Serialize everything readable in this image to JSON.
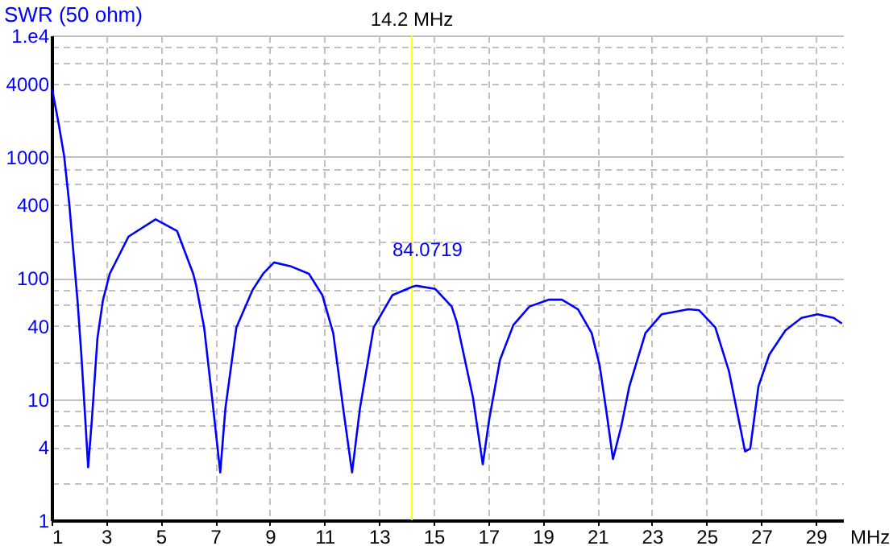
{
  "chart_data": {
    "type": "line",
    "ylabel": "SWR (50 ohm)",
    "xlabel": "MHz",
    "log": "y",
    "grid": true,
    "marker": "none",
    "line_style": "solid",
    "xlim": [
      1,
      30
    ],
    "xticks": [
      1,
      3,
      5,
      7,
      9,
      11,
      13,
      15,
      17,
      19,
      21,
      23,
      25,
      27,
      29
    ],
    "ylim": [
      1,
      10000
    ],
    "yticks": [
      1,
      {
        "value": 2,
        "label": null
      },
      4,
      {
        "value": 6,
        "label": null
      },
      {
        "value": 8,
        "label": null
      },
      10,
      {
        "value": 20,
        "label": null
      },
      40,
      {
        "value": 60,
        "label": null
      },
      {
        "value": 80,
        "label": null
      },
      100,
      {
        "value": 200,
        "label": null
      },
      400,
      {
        "value": 600,
        "label": null
      },
      {
        "value": 800,
        "label": null
      },
      1000,
      {
        "value": 2000,
        "label": null
      },
      4000,
      {
        "value": 6000,
        "label": null
      },
      {
        "value": 8000,
        "label": null
      },
      {
        "value": 10000,
        "label": "1.e4"
      }
    ],
    "ref_lines": [
      {
        "axis": "x",
        "value": 14.2,
        "label": "14.2 MHz",
        "color": "#ffff00"
      }
    ],
    "annotations": [
      {
        "text": "84.0719",
        "x": 14.2,
        "y": 84.0719
      }
    ],
    "series": [
      {
        "color": "#0000ff",
        "x": [
          1.02,
          1.26,
          1.46,
          1.65,
          1.85,
          1.95,
          2.09,
          2.21,
          2.34,
          2.48,
          2.68,
          2.88,
          3.13,
          3.82,
          4.81,
          5.6,
          6.19,
          6.29,
          6.59,
          6.88,
          7.18,
          7.37,
          7.77,
          8.36,
          8.75,
          9.15,
          9.74,
          10.43,
          10.92,
          11.32,
          11.71,
          12.01,
          12.3,
          12.8,
          13.49,
          14.2,
          14.37,
          15.06,
          15.66,
          15.85,
          16.44,
          16.8,
          17.04,
          17.43,
          17.92,
          18.51,
          19.21,
          19.7,
          20.29,
          20.79,
          21.08,
          21.34,
          21.57,
          21.87,
          22.17,
          22.76,
          23.35,
          24.34,
          24.73,
          25.32,
          25.82,
          26.21,
          26.41,
          26.6,
          26.9,
          27.3,
          27.89,
          28.48,
          29.07,
          29.66,
          29.96
        ],
        "values": [
          3620,
          1866,
          1012,
          405,
          119,
          65,
          23.3,
          8.4,
          2.74,
          6.9,
          31.7,
          65,
          108,
          219,
          304,
          243,
          108,
          88,
          38.9,
          10.3,
          2.48,
          8.4,
          38.9,
          79,
          108,
          134,
          125,
          108,
          72,
          35,
          7.6,
          2.48,
          8.4,
          38.9,
          72,
          84.0719,
          86,
          81,
          58,
          43,
          10.3,
          2.89,
          6.9,
          21,
          40.8,
          58,
          66,
          66,
          55,
          35,
          19,
          7.6,
          3.2,
          5.9,
          12.7,
          35,
          50,
          55,
          54,
          39,
          17,
          6.2,
          3.7,
          3.9,
          12.7,
          23.3,
          36.9,
          46.7,
          50,
          46.7,
          42
        ]
      }
    ]
  }
}
